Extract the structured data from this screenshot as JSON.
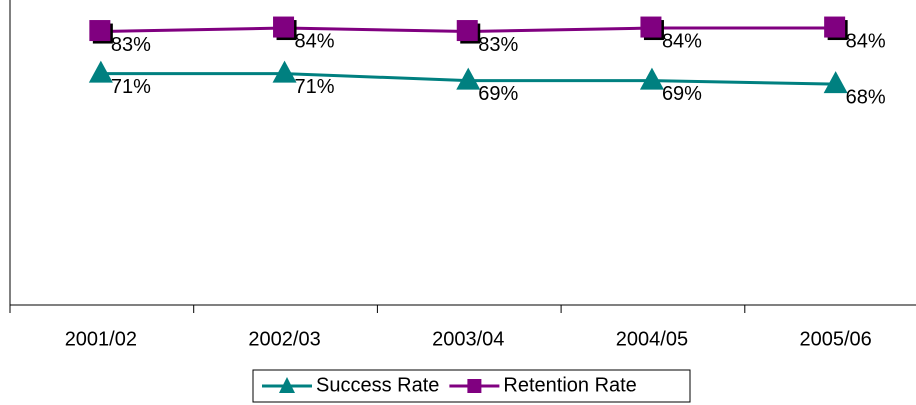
{
  "chart_data": {
    "type": "line",
    "categories": [
      "2001/02",
      "2002/03",
      "2003/04",
      "2004/05",
      "2005/06"
    ],
    "series": [
      {
        "name": "Success Rate",
        "color": "#008080",
        "marker": "triangle",
        "values": [
          71,
          71,
          69,
          69,
          68
        ],
        "value_labels": [
          "71%",
          "71%",
          "69%",
          "69%",
          "68%"
        ]
      },
      {
        "name": "Retention Rate",
        "color": "#800080",
        "marker": "square",
        "values": [
          83,
          84,
          83,
          84,
          84
        ],
        "value_labels": [
          "83%",
          "84%",
          "83%",
          "84%",
          "84%"
        ]
      }
    ],
    "ylim": [
      5,
      92
    ],
    "legend": "bottom"
  }
}
